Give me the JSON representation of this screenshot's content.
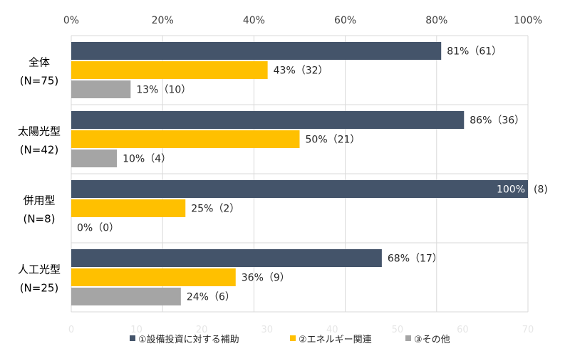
{
  "chart_data": {
    "type": "bar",
    "orientation": "horizontal",
    "title": "",
    "xlim": [
      0,
      100
    ],
    "x_tick_labels": [
      "0%",
      "20%",
      "40%",
      "60%",
      "80%",
      "100%"
    ],
    "faint_bottom_ticks": [
      "0",
      "10",
      "20",
      "30",
      "40",
      "50",
      "60",
      "70"
    ],
    "grid": true,
    "legend_position": "bottom",
    "categories": [
      {
        "label_line1": "全体",
        "label_line2": "(N=75)"
      },
      {
        "label_line1": "太陽光型",
        "label_line2": "(N=42)"
      },
      {
        "label_line1": "併用型",
        "label_line2": "(N=8)"
      },
      {
        "label_line1": "人工光型",
        "label_line2": "(N=25)"
      }
    ],
    "series": [
      {
        "name": "①設備投資に対する補助",
        "color": "#44546a",
        "values": [
          81,
          86,
          100,
          68
        ],
        "labels": [
          "81%（61）",
          "86%（36）",
          "100%",
          "68%（17）"
        ]
      },
      {
        "name": "②エネルギー関連",
        "color": "#ffc000",
        "values": [
          43,
          50,
          25,
          36
        ],
        "labels": [
          "43%（32）",
          "50%（21）",
          "25%（2）",
          "36%（9）"
        ]
      },
      {
        "name": "③その他",
        "color": "#a5a5a5",
        "values": [
          13,
          10,
          0,
          24
        ],
        "labels": [
          "13%（10）",
          "10%（4）",
          "0%（0）",
          "24%（6）"
        ]
      }
    ],
    "extra_labels": [
      {
        "text": "(8)"
      }
    ]
  }
}
